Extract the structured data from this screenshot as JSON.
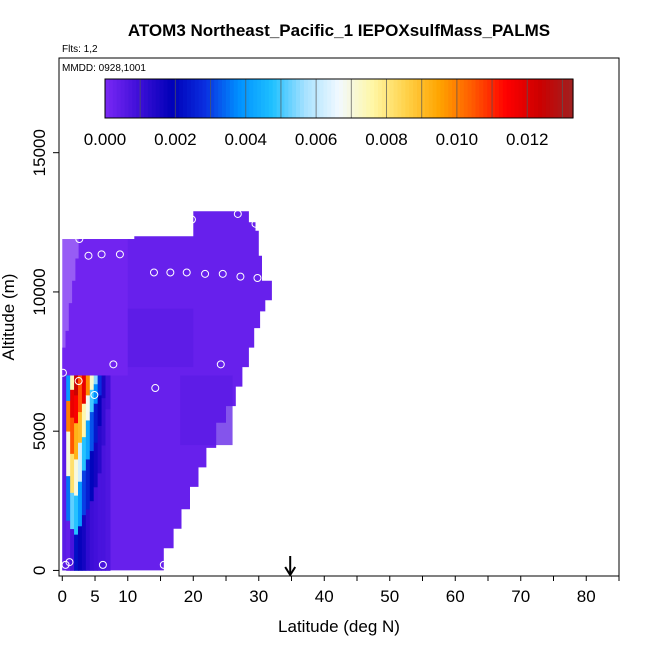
{
  "chart_data": {
    "type": "heatmap",
    "title": "ATOM3 Northeast_Pacific_1 IEPOXsulfMass_PALMS",
    "flights_label": "Flts: 1,2",
    "mmdd_label": "MMDD: 0928,1001",
    "xlabel": "Latitude (deg N)",
    "ylabel": "Altitude (m)",
    "xlim": [
      -0.5,
      85
    ],
    "ylim": [
      -200,
      18400
    ],
    "x_ticks": [
      0,
      5,
      10,
      20,
      30,
      40,
      50,
      60,
      70,
      80
    ],
    "x_tick_labels": [
      "0",
      "5",
      "10",
      "20",
      "30",
      "40",
      "50",
      "60",
      "70",
      "80"
    ],
    "y_ticks": [
      0,
      5000,
      10000,
      15000
    ],
    "y_tick_labels": [
      "0",
      "5000",
      "10000",
      "15000"
    ],
    "colorbar": {
      "range": [
        0,
        0.0133
      ],
      "tick_values": [
        0.0,
        0.002,
        0.004,
        0.006,
        0.008,
        0.01,
        0.012
      ],
      "tick_labels": [
        "0.000",
        "0.002",
        "0.004",
        "0.006",
        "0.008",
        "0.010",
        "0.012"
      ],
      "colors": [
        "#7a28f5",
        "#3f0fd8",
        "#0000b8",
        "#0a2fe0",
        "#0090ff",
        "#1ec0ff",
        "#a8e2ff",
        "#f2f9ff",
        "#fff7a6",
        "#ffd24a",
        "#ffa400",
        "#ff5a00",
        "#ff0000",
        "#cc0000",
        "#a02020"
      ]
    },
    "arrow_latitude": 34.8,
    "background_value": 0.0003,
    "curtain_boundary": [
      [
        0.0,
        0
      ],
      [
        15.5,
        0
      ],
      [
        15.5,
        800
      ],
      [
        17.0,
        800
      ],
      [
        17.0,
        1500
      ],
      [
        18.2,
        1500
      ],
      [
        18.2,
        2200
      ],
      [
        19.5,
        2200
      ],
      [
        19.5,
        3000
      ],
      [
        20.8,
        3000
      ],
      [
        20.8,
        3700
      ],
      [
        22.0,
        3700
      ],
      [
        22.0,
        4400
      ],
      [
        23.5,
        4400
      ],
      [
        23.5,
        5300
      ],
      [
        25.0,
        5300
      ],
      [
        25.0,
        5900
      ],
      [
        26.5,
        5900
      ],
      [
        26.5,
        6600
      ],
      [
        27.5,
        6600
      ],
      [
        27.5,
        7300
      ],
      [
        28.5,
        7300
      ],
      [
        28.5,
        8000
      ],
      [
        29.3,
        8000
      ],
      [
        29.3,
        8700
      ],
      [
        30.2,
        8700
      ],
      [
        30.2,
        9300
      ],
      [
        31.0,
        9300
      ],
      [
        31.0,
        9700
      ],
      [
        32.0,
        9700
      ],
      [
        32.0,
        10400
      ],
      [
        30.5,
        10400
      ],
      [
        30.5,
        11300
      ],
      [
        30.0,
        11300
      ],
      [
        30.0,
        12200
      ],
      [
        29.5,
        12200
      ],
      [
        29.5,
        12500
      ],
      [
        28.5,
        12500
      ],
      [
        28.5,
        12900
      ],
      [
        20.0,
        12900
      ],
      [
        20.0,
        12000
      ],
      [
        11.0,
        12000
      ],
      [
        11.0,
        11900
      ],
      [
        2.5,
        11900
      ],
      [
        2.5,
        11200
      ],
      [
        2.0,
        11200
      ],
      [
        2.0,
        10400
      ],
      [
        1.5,
        10400
      ],
      [
        1.5,
        9600
      ],
      [
        1.0,
        9600
      ],
      [
        1.0,
        8600
      ],
      [
        0.5,
        8600
      ],
      [
        0.5,
        8000
      ],
      [
        0.0,
        8000
      ],
      [
        0.0,
        7500
      ],
      [
        0.0,
        0
      ]
    ],
    "plume_columns": [
      {
        "lat_start": 0.6,
        "lat_end": 1.2,
        "bands": [
          [
            0,
            1800,
            0.0004
          ],
          [
            1800,
            3400,
            0.0035
          ],
          [
            3400,
            5000,
            0.007
          ],
          [
            5000,
            6100,
            0.01
          ],
          [
            6100,
            7000,
            0.004
          ]
        ]
      },
      {
        "lat_start": 1.2,
        "lat_end": 1.8,
        "bands": [
          [
            0,
            1500,
            0.0008
          ],
          [
            1500,
            2800,
            0.0052
          ],
          [
            2800,
            4200,
            0.0082
          ],
          [
            4200,
            5500,
            0.0105
          ],
          [
            5500,
            6500,
            0.0118
          ],
          [
            6500,
            7000,
            0.0075
          ]
        ]
      },
      {
        "lat_start": 1.8,
        "lat_end": 2.4,
        "bands": [
          [
            0,
            1300,
            0.0022
          ],
          [
            1300,
            2700,
            0.0048
          ],
          [
            2700,
            4000,
            0.007
          ],
          [
            4000,
            5300,
            0.0092
          ],
          [
            5300,
            6300,
            0.0115
          ],
          [
            6300,
            7000,
            0.0124
          ]
        ]
      },
      {
        "lat_start": 2.4,
        "lat_end": 3.0,
        "bands": [
          [
            0,
            1600,
            0.0018
          ],
          [
            1600,
            3200,
            0.004
          ],
          [
            3200,
            4600,
            0.0062
          ],
          [
            4600,
            5700,
            0.009
          ],
          [
            5700,
            7000,
            0.0105
          ]
        ]
      },
      {
        "lat_start": 3.0,
        "lat_end": 3.6,
        "bands": [
          [
            0,
            2000,
            0.0016
          ],
          [
            2000,
            3600,
            0.003
          ],
          [
            3600,
            4800,
            0.0048
          ],
          [
            4800,
            6000,
            0.0075
          ],
          [
            6000,
            7000,
            0.0118
          ]
        ]
      },
      {
        "lat_start": 3.6,
        "lat_end": 4.2,
        "bands": [
          [
            0,
            2200,
            0.0012
          ],
          [
            2200,
            4000,
            0.0025
          ],
          [
            4000,
            5400,
            0.0042
          ],
          [
            5400,
            6300,
            0.0068
          ],
          [
            6300,
            7000,
            0.0098
          ]
        ]
      },
      {
        "lat_start": 4.2,
        "lat_end": 4.8,
        "bands": [
          [
            0,
            2500,
            0.001
          ],
          [
            2500,
            4300,
            0.002
          ],
          [
            4300,
            5700,
            0.0032
          ],
          [
            5700,
            6500,
            0.005
          ],
          [
            6500,
            7000,
            0.0072
          ]
        ]
      },
      {
        "lat_start": 4.8,
        "lat_end": 5.4,
        "bands": [
          [
            0,
            3000,
            0.0009
          ],
          [
            3000,
            4600,
            0.0016
          ],
          [
            4600,
            6000,
            0.0024
          ],
          [
            6000,
            6700,
            0.0038
          ],
          [
            6700,
            7000,
            0.0055
          ]
        ]
      },
      {
        "lat_start": 5.4,
        "lat_end": 6.0,
        "bands": [
          [
            0,
            3500,
            0.0008
          ],
          [
            3500,
            5200,
            0.0013
          ],
          [
            5200,
            6300,
            0.0018
          ],
          [
            6300,
            7000,
            0.0028
          ]
        ]
      },
      {
        "lat_start": 6.0,
        "lat_end": 6.6,
        "bands": [
          [
            0,
            4500,
            0.0008
          ],
          [
            4500,
            6200,
            0.0011
          ],
          [
            6200,
            7000,
            0.0015
          ]
        ]
      },
      {
        "lat_start": 6.6,
        "lat_end": 7.3,
        "bands": [
          [
            0,
            5800,
            0.0007
          ],
          [
            5800,
            7000,
            0.0009
          ]
        ]
      }
    ],
    "shading_patches": [
      {
        "lat_start": 0.0,
        "lat_end": 10.0,
        "alt_start": 7000,
        "alt_end": 11900,
        "value": 0.0001
      },
      {
        "lat_start": 10.0,
        "lat_end": 20.0,
        "alt_start": 7300,
        "alt_end": 9400,
        "value": 0.0005
      },
      {
        "lat_start": 18.0,
        "lat_end": 26.0,
        "alt_start": 4500,
        "alt_end": 7000,
        "value": 0.0005
      },
      {
        "lat_start": 0.0,
        "lat_end": 0.6,
        "alt_start": 0,
        "alt_end": 7000,
        "value": 0.0006
      }
    ],
    "sample_points": [
      {
        "lat": 2.6,
        "alt": 11900
      },
      {
        "lat": 4.0,
        "alt": 11300
      },
      {
        "lat": 6.0,
        "alt": 11350
      },
      {
        "lat": 8.8,
        "alt": 11350
      },
      {
        "lat": 14.0,
        "alt": 10700
      },
      {
        "lat": 16.5,
        "alt": 10700
      },
      {
        "lat": 19.0,
        "alt": 10700
      },
      {
        "lat": 21.8,
        "alt": 10650
      },
      {
        "lat": 24.5,
        "alt": 10650
      },
      {
        "lat": 27.2,
        "alt": 10550
      },
      {
        "lat": 29.8,
        "alt": 10500
      },
      {
        "lat": 19.8,
        "alt": 12600
      },
      {
        "lat": 26.8,
        "alt": 12800
      },
      {
        "lat": 29.5,
        "alt": 12450
      },
      {
        "lat": 0.1,
        "alt": 7100
      },
      {
        "lat": 7.8,
        "alt": 7400
      },
      {
        "lat": 24.2,
        "alt": 7400
      },
      {
        "lat": 2.5,
        "alt": 6800
      },
      {
        "lat": 14.2,
        "alt": 6550
      },
      {
        "lat": 4.9,
        "alt": 6300
      },
      {
        "lat": 0.5,
        "alt": 200
      },
      {
        "lat": 1.1,
        "alt": 300
      },
      {
        "lat": 6.2,
        "alt": 200
      },
      {
        "lat": 15.5,
        "alt": 200
      }
    ]
  }
}
